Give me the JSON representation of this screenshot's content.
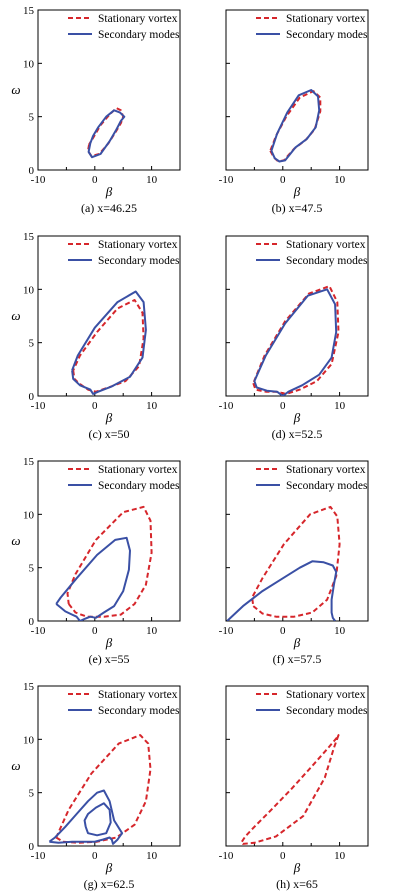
{
  "legend": {
    "stationary": "Stationary vortex",
    "secondary": "Secondary modes"
  },
  "colors": {
    "stationary": "#d6262b",
    "secondary": "#3a50a5",
    "axis": "#000000"
  },
  "axes": {
    "xlabel": "β",
    "ylabel": "ω",
    "xlim": [
      -10,
      15
    ],
    "ylim": [
      0,
      15
    ],
    "xticks": [
      -10,
      0,
      10
    ],
    "yticks": [
      0,
      5,
      10,
      15
    ]
  },
  "chart_data": [
    {
      "type": "line",
      "caption": "(a)  x=46.25",
      "legend": "both",
      "series": [
        {
          "name": "Stationary vortex",
          "style": "dashed",
          "x": [
            -1,
            -1.2,
            -0.6,
            0.8,
            2.4,
            3.6,
            4.6,
            5.0,
            4.6,
            3.8,
            2.6,
            1.0,
            -0.2,
            -1.0
          ],
          "y": [
            2.4,
            1.8,
            1.3,
            1.5,
            2.5,
            3.5,
            4.4,
            5.0,
            5.6,
            5.8,
            5.2,
            4.2,
            3.1,
            2.4
          ]
        },
        {
          "name": "Secondary modes",
          "style": "solid",
          "x": [
            -0.8,
            -1.1,
            -0.5,
            1.0,
            2.6,
            3.8,
            4.6,
            5.2,
            4.4,
            3.4,
            2.0,
            0.6,
            -0.3,
            -0.8
          ],
          "y": [
            2.5,
            1.7,
            1.2,
            1.5,
            2.7,
            3.8,
            4.6,
            5.0,
            5.4,
            5.6,
            5.0,
            4.0,
            3.2,
            2.5
          ]
        }
      ]
    },
    {
      "type": "line",
      "caption": "(b)  x=47.5",
      "legend": "both",
      "series": [
        {
          "name": "Stationary vortex",
          "style": "dashed",
          "x": [
            -2.2,
            -1.6,
            -0.8,
            0.2,
            2.0,
            4.0,
            5.6,
            6.6,
            6.6,
            5.4,
            3.0,
            0.6,
            -1.2,
            -2.2
          ],
          "y": [
            1.8,
            1.2,
            0.8,
            0.9,
            2.0,
            2.8,
            3.8,
            5.5,
            6.8,
            7.4,
            6.8,
            5.0,
            3.2,
            1.8
          ]
        },
        {
          "name": "Secondary modes",
          "style": "solid",
          "x": [
            -2.0,
            -1.4,
            -0.6,
            0.4,
            2.2,
            4.2,
            5.8,
            6.4,
            6.2,
            5.0,
            2.8,
            0.8,
            -1.0,
            -2.0
          ],
          "y": [
            1.8,
            1.1,
            0.8,
            0.9,
            2.1,
            2.9,
            4.0,
            5.6,
            6.9,
            7.5,
            7.0,
            5.4,
            3.4,
            1.8
          ]
        }
      ]
    },
    {
      "type": "line",
      "caption": "(c)  x=50",
      "legend": "both",
      "series": [
        {
          "name": "Stationary vortex",
          "style": "dashed",
          "x": [
            -3.8,
            -3.6,
            -2.8,
            -1.2,
            0.2,
            2.4,
            5.4,
            7.8,
            8.6,
            8.4,
            7.0,
            4.0,
            0.4,
            -2.6,
            -3.8
          ],
          "y": [
            2.4,
            1.6,
            1.2,
            0.6,
            0.4,
            0.8,
            1.4,
            2.8,
            5.4,
            7.8,
            9.0,
            8.2,
            6.0,
            3.8,
            2.4
          ]
        },
        {
          "name": "Secondary modes",
          "style": "solid",
          "x": [
            -4.0,
            -3.8,
            -2.6,
            -0.8,
            -0.3,
            0.6,
            3.0,
            6.2,
            8.4,
            9.0,
            8.6,
            7.2,
            4.0,
            0.0,
            -3.0,
            -4.0
          ],
          "y": [
            2.4,
            1.6,
            1.0,
            0.6,
            0.2,
            0.4,
            0.9,
            1.8,
            3.6,
            6.2,
            8.8,
            9.8,
            8.8,
            6.4,
            3.8,
            2.4
          ]
        }
      ]
    },
    {
      "type": "line",
      "caption": "(d)  x=52.5",
      "legend": "both",
      "series": [
        {
          "name": "Stationary vortex",
          "style": "dashed",
          "x": [
            -5.2,
            -4.8,
            -3.0,
            -1.2,
            0.6,
            3.0,
            6.0,
            8.6,
            9.8,
            9.6,
            8.2,
            4.6,
            0.4,
            -3.2,
            -5.2
          ],
          "y": [
            1.2,
            0.6,
            0.4,
            0.4,
            0.2,
            0.6,
            1.4,
            3.0,
            6.0,
            8.8,
            10.3,
            9.6,
            7.0,
            3.8,
            1.2
          ]
        },
        {
          "name": "Secondary modes",
          "style": "solid",
          "x": [
            -5.0,
            -4.6,
            -2.8,
            -1.0,
            0.0,
            1.0,
            3.4,
            6.4,
            8.6,
            9.4,
            9.2,
            7.8,
            4.4,
            0.4,
            -3.0,
            -5.0
          ],
          "y": [
            1.4,
            0.8,
            0.5,
            0.4,
            0.0,
            0.4,
            1.0,
            2.0,
            3.6,
            6.0,
            8.6,
            10.0,
            9.4,
            6.8,
            3.8,
            1.4
          ]
        }
      ]
    },
    {
      "type": "line",
      "caption": "(e)  x=55",
      "legend": "both",
      "series": [
        {
          "name": "Stationary vortex",
          "style": "dashed",
          "x": [
            -4.6,
            -3.4,
            -1.4,
            1.6,
            4.6,
            7.0,
            9.0,
            10.0,
            9.8,
            8.6,
            5.0,
            0.2,
            -3.4,
            -4.8,
            -4.6
          ],
          "y": [
            1.6,
            0.8,
            0.4,
            0.4,
            0.6,
            1.6,
            3.4,
            6.4,
            9.4,
            10.7,
            10.2,
            7.6,
            4.4,
            2.6,
            1.6
          ]
        },
        {
          "name": "Secondary modes",
          "style": "solid",
          "x": [
            -6.8,
            -5.2,
            -4.0,
            -3.2,
            -2.6,
            -1.8,
            -0.8,
            0.2,
            1.6,
            3.4,
            5.0,
            6.0,
            6.2,
            5.6,
            3.6,
            0.4,
            -3.2,
            -6.0,
            -6.8
          ],
          "y": [
            1.6,
            0.9,
            0.6,
            0.4,
            0.0,
            0.2,
            0.4,
            0.3,
            0.8,
            1.4,
            2.8,
            4.8,
            6.6,
            7.8,
            7.6,
            6.2,
            4.0,
            2.2,
            1.6
          ]
        }
      ]
    },
    {
      "type": "line",
      "caption": "(f)  x=57.5",
      "legend": "both",
      "series": [
        {
          "name": "Stationary vortex",
          "style": "dashed",
          "x": [
            -5.2,
            -3.6,
            -1.2,
            2.0,
            5.2,
            7.8,
            9.4,
            10.0,
            9.6,
            8.4,
            4.8,
            0.2,
            -3.6,
            -5.4,
            -5.2
          ],
          "y": [
            1.4,
            0.7,
            0.4,
            0.4,
            0.8,
            2.0,
            4.2,
            7.2,
            9.8,
            10.7,
            10.0,
            7.2,
            4.0,
            2.2,
            1.4
          ]
        },
        {
          "name": "Secondary modes",
          "style": "solid",
          "x": [
            -9.8,
            -7.0,
            -3.6,
            0.0,
            3.0,
            5.2,
            7.2,
            8.8,
            9.4,
            9.0,
            8.6,
            8.6,
            8.8,
            9.2
          ],
          "y": [
            0.0,
            1.4,
            2.8,
            4.0,
            5.0,
            5.6,
            5.5,
            5.2,
            4.6,
            3.4,
            2.0,
            0.8,
            0.3,
            0.0
          ]
        }
      ]
    },
    {
      "type": "line",
      "caption": "(g)  x=62.5",
      "legend": "both",
      "series": [
        {
          "name": "Stationary vortex",
          "style": "dashed",
          "x": [
            -6.8,
            -5.6,
            -3.0,
            0.4,
            3.8,
            7.0,
            9.0,
            9.8,
            9.4,
            8.0,
            4.2,
            -0.6,
            -4.6,
            -6.8
          ],
          "y": [
            0.8,
            0.4,
            0.3,
            0.4,
            0.8,
            2.0,
            4.2,
            7.2,
            9.6,
            10.4,
            9.6,
            6.8,
            3.4,
            0.8
          ]
        },
        {
          "name": "Secondary modes",
          "style": "solid",
          "x": [
            -8.0,
            -6.4,
            -4.0,
            -2.0,
            0.0,
            1.4,
            2.6,
            3.0,
            3.2,
            4.0,
            4.8,
            3.4,
            2.6,
            1.6,
            0.4,
            -1.2,
            -3.2,
            -5.2,
            -7.0,
            -8.0
          ],
          "y": [
            0.4,
            0.3,
            0.4,
            0.4,
            0.4,
            0.6,
            0.8,
            0.6,
            0.2,
            0.6,
            1.2,
            2.4,
            4.2,
            5.2,
            5.0,
            4.2,
            3.0,
            1.8,
            0.8,
            0.4
          ]
        },
        {
          "name": "",
          "style": "solid",
          "x": [
            -1.6,
            -1.2,
            0.4,
            2.0,
            2.8,
            2.6,
            1.6,
            0.2,
            -1.2,
            -1.8,
            -1.6
          ],
          "y": [
            1.8,
            1.2,
            1.0,
            1.2,
            2.2,
            3.4,
            4.0,
            3.6,
            3.0,
            2.4,
            1.8
          ]
        }
      ]
    },
    {
      "type": "line",
      "caption": "(h)  x=65",
      "legend": "both",
      "series": [
        {
          "name": "Stationary vortex",
          "style": "dashed",
          "x": [
            -7.2,
            -6.6,
            -5.0,
            -2.0,
            1.6,
            5.0,
            8.0,
            9.6,
            9.8,
            9.0,
            7.4,
            3.6,
            -1.2,
            -5.0,
            -7.0,
            -7.2
          ],
          "y": [
            0.4,
            0.9,
            1.8,
            3.4,
            5.4,
            7.4,
            9.2,
            10.2,
            10.4,
            9.2,
            6.4,
            2.8,
            0.9,
            0.3,
            0.2,
            0.4
          ]
        }
      ]
    }
  ]
}
